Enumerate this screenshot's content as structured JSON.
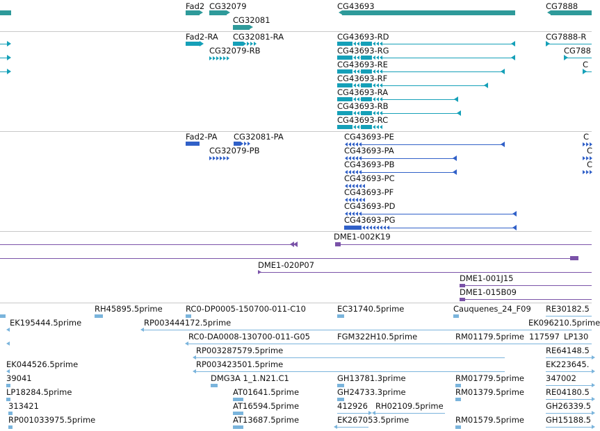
{
  "colors": {
    "gene": "#2e9a9a",
    "rna": "#15a0b8",
    "protein": "#3060c8",
    "clone": "#7a52a8",
    "est": "#7ab4dc",
    "separator": "#c8c8c8"
  },
  "tracks": {
    "genes": [
      {
        "label": "Fad2"
      },
      {
        "label": "CG32079"
      },
      {
        "label": "CG32081"
      },
      {
        "label": "CG43693"
      },
      {
        "label": "CG7888"
      }
    ],
    "transcripts": [
      {
        "label": "Fad2-RA"
      },
      {
        "label": "CG32081-RA"
      },
      {
        "label": "CG32079-RB"
      },
      {
        "label": "CG43693-RD"
      },
      {
        "label": "CG43693-RG"
      },
      {
        "label": "CG43693-RE"
      },
      {
        "label": "CG43693-RF"
      },
      {
        "label": "CG43693-RA"
      },
      {
        "label": "CG43693-RB"
      },
      {
        "label": "CG43693-RC"
      },
      {
        "label": "CG7888-R"
      },
      {
        "label": "CG788"
      },
      {
        "label": "C"
      }
    ],
    "proteins": [
      {
        "label": "Fad2-PA"
      },
      {
        "label": "CG32081-PA"
      },
      {
        "label": "CG32079-PB"
      },
      {
        "label": "CG43693-PE"
      },
      {
        "label": "CG43693-PA"
      },
      {
        "label": "CG43693-PB"
      },
      {
        "label": "CG43693-PC"
      },
      {
        "label": "CG43693-PF"
      },
      {
        "label": "CG43693-PD"
      },
      {
        "label": "CG43693-PG"
      },
      {
        "label": "C"
      },
      {
        "label": "C"
      },
      {
        "label": "C"
      }
    ],
    "clones": [
      {
        "label": "DME1-002K19"
      },
      {
        "label": "DME1-020P07"
      },
      {
        "label": "DME1-001J15"
      },
      {
        "label": "DME1-015B09"
      }
    ],
    "ests": [
      {
        "label": "RH45895.5prime"
      },
      {
        "label": "RC0-DP0005-150700-011-C10"
      },
      {
        "label": "EC31740.5prime"
      },
      {
        "label": "Cauquenes_24_F09"
      },
      {
        "label": "RE30182.5"
      },
      {
        "label": "EK195444.5prime"
      },
      {
        "label": "RP003444172.5prime"
      },
      {
        "label": "EK096210.5prime"
      },
      {
        "label": "RC0-DA0008-130700-011-G05"
      },
      {
        "label": "FGM322H10.5prime"
      },
      {
        "label": "RM01179.5prime"
      },
      {
        "label": "117597"
      },
      {
        "label": "LP130"
      },
      {
        "label": "RP003287579.5prime"
      },
      {
        "label": "RE64148.5"
      },
      {
        "label": "EK044526.5prime"
      },
      {
        "label": "RP003423501.5prime"
      },
      {
        "label": "EK223645."
      },
      {
        "label": "39041"
      },
      {
        "label": "DMG3A 1_1.N21.C1"
      },
      {
        "label": "GH13781.3prime"
      },
      {
        "label": "RM01779.5prime"
      },
      {
        "label": "347002"
      },
      {
        "label": "LP18284.5prime"
      },
      {
        "label": "AT01641.5prime"
      },
      {
        "label": "GH24733.3prime"
      },
      {
        "label": "RM01379.5prime"
      },
      {
        "label": "RE04180.5"
      },
      {
        "label": "313421"
      },
      {
        "label": "AT16594.5prime"
      },
      {
        "label": "412926"
      },
      {
        "label": "RH02109.5prime"
      },
      {
        "label": "GH26339.5"
      },
      {
        "label": "RP001033975.5prime"
      },
      {
        "label": "AT13687.5prime"
      },
      {
        "label": "EK267053.5prime"
      },
      {
        "label": "RM01579.5prime"
      },
      {
        "label": "GH15188.5"
      }
    ]
  }
}
